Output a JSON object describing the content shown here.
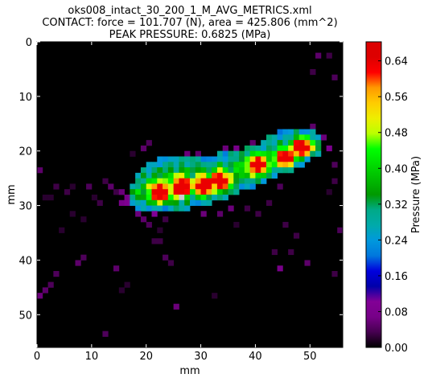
{
  "chart_data": {
    "type": "heatmap",
    "title_lines": [
      "oks008_intact_30_200_1_M_AVG_METRICS.xml",
      "CONTACT: force = 101.707 (N), area = 425.806 (mm^2)",
      "PEAK PRESSURE: 0.6825 (MPa)"
    ],
    "xlabel": "mm",
    "ylabel": "mm",
    "colorbar_label": "Pressure (MPa)",
    "xlim": [
      0,
      56
    ],
    "ylim": [
      56,
      0
    ],
    "x_ticks": [
      "0",
      "10",
      "20",
      "30",
      "40",
      "50"
    ],
    "y_ticks": [
      "0",
      "10",
      "20",
      "30",
      "40",
      "50"
    ],
    "colorbar_range": [
      0,
      0.6825
    ],
    "colorbar_ticks": [
      "0.00",
      "0.08",
      "0.16",
      "0.24",
      "0.32",
      "0.40",
      "0.48",
      "0.56",
      "0.64"
    ],
    "colormap": "nipy_spectral",
    "background_color": "#000000",
    "grid_mm": 1,
    "peak_pressure": 0.6825,
    "peak_location": [
      26,
      28
    ],
    "blob": {
      "upper_edge": [
        [
          17,
          27
        ],
        [
          19,
          23
        ],
        [
          21,
          22
        ],
        [
          24,
          21
        ],
        [
          30,
          21
        ],
        [
          36,
          20
        ],
        [
          40,
          19
        ],
        [
          43,
          17
        ],
        [
          46,
          16
        ],
        [
          51,
          16
        ],
        [
          52,
          18
        ]
      ],
      "lower_edge": [
        [
          17,
          30
        ],
        [
          20,
          31
        ],
        [
          25,
          31
        ],
        [
          31,
          30
        ],
        [
          36,
          28
        ],
        [
          41,
          26
        ],
        [
          45,
          24
        ],
        [
          48,
          23
        ],
        [
          51,
          21
        ],
        [
          53,
          20
        ]
      ]
    },
    "hot_spots": [
      {
        "x": 22,
        "y": 27,
        "p": 0.57
      },
      {
        "x": 26,
        "y": 26,
        "p": 0.58
      },
      {
        "x": 30,
        "y": 26,
        "p": 0.56
      },
      {
        "x": 33,
        "y": 25,
        "p": 0.55
      },
      {
        "x": 40,
        "y": 22,
        "p": 0.53
      },
      {
        "x": 45,
        "y": 21,
        "p": 0.55
      },
      {
        "x": 48,
        "y": 19,
        "p": 0.5
      }
    ],
    "scatter_cells": [
      [
        0,
        23,
        0.05
      ],
      [
        0,
        46,
        0.06
      ],
      [
        1,
        45,
        0.05
      ],
      [
        2,
        44,
        0.04
      ],
      [
        3,
        42,
        0.04
      ],
      [
        3,
        26,
        0.03
      ],
      [
        2,
        28,
        0.02
      ],
      [
        1,
        28,
        0.02
      ],
      [
        5,
        27,
        0.03
      ],
      [
        6,
        26,
        0.02
      ],
      [
        7,
        40,
        0.05
      ],
      [
        8,
        39,
        0.04
      ],
      [
        9,
        26,
        0.04
      ],
      [
        10,
        28,
        0.02
      ],
      [
        11,
        29,
        0.03
      ],
      [
        12,
        25,
        0.03
      ],
      [
        13,
        26,
        0.05
      ],
      [
        14,
        27,
        0.03
      ],
      [
        15,
        27,
        0.06
      ],
      [
        16,
        28,
        0.07
      ],
      [
        16,
        29,
        0.09
      ],
      [
        17,
        29,
        0.1
      ],
      [
        15,
        29,
        0.07
      ],
      [
        18,
        31,
        0.06
      ],
      [
        19,
        32,
        0.05
      ],
      [
        20,
        33,
        0.04
      ],
      [
        19,
        30,
        0.12
      ],
      [
        21,
        31,
        0.1
      ],
      [
        19,
        19,
        0.05
      ],
      [
        20,
        18,
        0.04
      ],
      [
        21,
        36,
        0.03
      ],
      [
        22,
        36,
        0.03
      ],
      [
        22,
        34,
        0.02
      ],
      [
        23,
        39,
        0.04
      ],
      [
        24,
        40,
        0.03
      ],
      [
        23,
        32,
        0.03
      ],
      [
        25,
        30,
        0.05
      ],
      [
        30,
        31,
        0.06
      ],
      [
        33,
        31,
        0.05
      ],
      [
        35,
        30,
        0.06
      ],
      [
        30,
        22,
        0.08
      ],
      [
        29,
        20,
        0.05
      ],
      [
        27,
        20,
        0.06
      ],
      [
        34,
        19,
        0.06
      ],
      [
        36,
        19,
        0.07
      ],
      [
        38,
        19,
        0.05
      ],
      [
        39,
        18,
        0.05
      ],
      [
        41,
        18,
        0.06
      ],
      [
        42,
        17,
        0.05
      ],
      [
        44,
        16,
        0.06
      ],
      [
        47,
        16,
        0.06
      ],
      [
        50,
        15,
        0.05
      ],
      [
        52,
        17,
        0.06
      ],
      [
        53,
        19,
        0.08
      ],
      [
        51,
        19,
        0.1
      ],
      [
        49,
        21,
        0.14
      ],
      [
        48,
        22,
        0.18
      ],
      [
        54,
        22,
        0.04
      ],
      [
        54,
        25,
        0.03
      ],
      [
        53,
        27,
        0.02
      ],
      [
        55,
        34,
        0.04
      ],
      [
        54,
        6,
        0.04
      ],
      [
        53,
        2,
        0.03
      ],
      [
        51,
        2,
        0.05
      ],
      [
        50,
        5,
        0.03
      ],
      [
        54,
        42,
        0.03
      ],
      [
        44,
        41,
        0.07
      ],
      [
        49,
        40,
        0.05
      ],
      [
        46,
        38,
        0.03
      ],
      [
        43,
        38,
        0.03
      ],
      [
        47,
        35,
        0.03
      ],
      [
        45,
        33,
        0.03
      ],
      [
        40,
        31,
        0.03
      ],
      [
        38,
        30,
        0.03
      ],
      [
        44,
        26,
        0.04
      ],
      [
        42,
        29,
        0.03
      ],
      [
        14,
        41,
        0.05
      ],
      [
        15,
        45,
        0.02
      ],
      [
        16,
        44,
        0.02
      ],
      [
        25,
        48,
        0.06
      ],
      [
        12,
        53,
        0.04
      ],
      [
        26,
        27,
        0.02
      ],
      [
        8,
        32,
        0.02
      ],
      [
        17,
        20,
        0.02
      ],
      [
        33,
        20,
        0.04
      ],
      [
        36,
        33,
        0.02
      ],
      [
        32,
        46,
        0.02
      ],
      [
        4,
        34,
        0.02
      ],
      [
        6,
        31,
        0.02
      ]
    ]
  }
}
